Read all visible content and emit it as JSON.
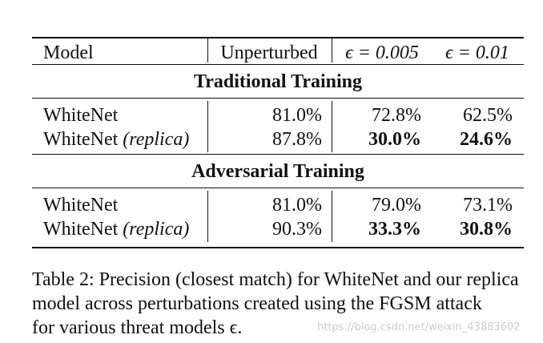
{
  "table": {
    "headers": [
      "Model",
      "Unperturbed",
      "ϵ = 0.005",
      "ϵ = 0.01"
    ],
    "sections": [
      {
        "title": "Traditional Training",
        "rows": [
          {
            "model": "WhiteNet",
            "model_suffix": "",
            "unperturbed": "81.0%",
            "eps_005": "72.8%",
            "eps_01": "62.5%",
            "bold": false
          },
          {
            "model": "WhiteNet",
            "model_suffix": "(replica)",
            "unperturbed": "87.8%",
            "eps_005": "30.0%",
            "eps_01": "24.6%",
            "bold": true
          }
        ]
      },
      {
        "title": "Adversarial Training",
        "rows": [
          {
            "model": "WhiteNet",
            "model_suffix": "",
            "unperturbed": "81.0%",
            "eps_005": "79.0%",
            "eps_01": "73.1%",
            "bold": false
          },
          {
            "model": "WhiteNet",
            "model_suffix": "(replica)",
            "unperturbed": "90.3%",
            "eps_005": "33.3%",
            "eps_01": "30.8%",
            "bold": true
          }
        ]
      }
    ]
  },
  "caption": {
    "line1": "Table 2: Precision (closest match) for WhiteNet and our replica",
    "line2": "model across perturbations created using the FGSM attack",
    "line3": "for various threat models ϵ."
  },
  "watermark": "https://blog.csdn.net/weixin_43883602"
}
